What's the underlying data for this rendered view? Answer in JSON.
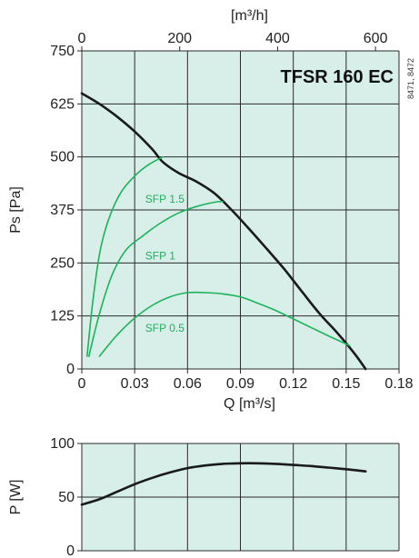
{
  "colors": {
    "plot_bg": "#d7eee9",
    "grid": "#2b2b2b",
    "curve": "#1a1a1a",
    "sfp": "#1db35a"
  },
  "title": "TFSR 160 EC",
  "side_code": "8471, 8472",
  "chart_data": [
    {
      "type": "line",
      "title": "TFSR 160 EC",
      "xlabel": "Q [m³/s]",
      "ylabel": "Ps [Pa]",
      "secondary_x": {
        "label": "[m³/h]",
        "ticks": [
          "0",
          "200",
          "400",
          "600"
        ]
      },
      "xticks": [
        "0",
        "0.03",
        "0.06",
        "0.09",
        "0.12",
        "0.15",
        "0.18"
      ],
      "yticks": [
        "0",
        "125",
        "250",
        "375",
        "500",
        "625",
        "750"
      ],
      "xlim": [
        0,
        0.18
      ],
      "ylim": [
        0,
        750
      ],
      "grid": true,
      "series": [
        {
          "role": "fan-curve",
          "x": [
            0,
            0.01,
            0.02,
            0.03,
            0.04,
            0.046,
            0.055,
            0.065,
            0.075,
            0.085,
            0.095,
            0.105,
            0.115,
            0.125,
            0.135,
            0.145,
            0.155,
            0.161
          ],
          "y": [
            650,
            625,
            595,
            560,
            518,
            488,
            462,
            442,
            415,
            375,
            330,
            283,
            235,
            182,
            130,
            85,
            35,
            0
          ]
        },
        {
          "name": "SFP 1.5",
          "x": [
            0.003,
            0.006,
            0.01,
            0.015,
            0.022,
            0.03,
            0.038,
            0.046
          ],
          "y": [
            30,
            150,
            270,
            350,
            415,
            455,
            482,
            500
          ]
        },
        {
          "name": "SFP 1",
          "x": [
            0.004,
            0.01,
            0.017,
            0.025,
            0.035,
            0.045,
            0.055,
            0.065,
            0.075,
            0.08
          ],
          "y": [
            30,
            130,
            220,
            280,
            315,
            345,
            368,
            383,
            393,
            395
          ]
        },
        {
          "name": "SFP 0.5",
          "x": [
            0.01,
            0.02,
            0.03,
            0.04,
            0.05,
            0.06,
            0.07,
            0.08,
            0.09,
            0.1,
            0.11,
            0.12,
            0.13,
            0.14,
            0.152
          ],
          "y": [
            30,
            80,
            120,
            150,
            170,
            180,
            180,
            177,
            170,
            155,
            138,
            118,
            98,
            78,
            55
          ]
        }
      ]
    },
    {
      "type": "line",
      "ylabel": "P [W]",
      "yticks": [
        "0",
        "50",
        "100"
      ],
      "xlim": [
        0,
        0.18
      ],
      "ylim": [
        0,
        100
      ],
      "grid": true,
      "series": [
        {
          "role": "power-curve",
          "x": [
            0,
            0.01,
            0.02,
            0.03,
            0.04,
            0.05,
            0.06,
            0.07,
            0.08,
            0.09,
            0.1,
            0.11,
            0.12,
            0.13,
            0.14,
            0.15,
            0.161
          ],
          "y": [
            43,
            48,
            55,
            62,
            68,
            73,
            77,
            79.5,
            81,
            81.5,
            81.5,
            81,
            80,
            79,
            77.5,
            76,
            74
          ]
        }
      ]
    }
  ]
}
